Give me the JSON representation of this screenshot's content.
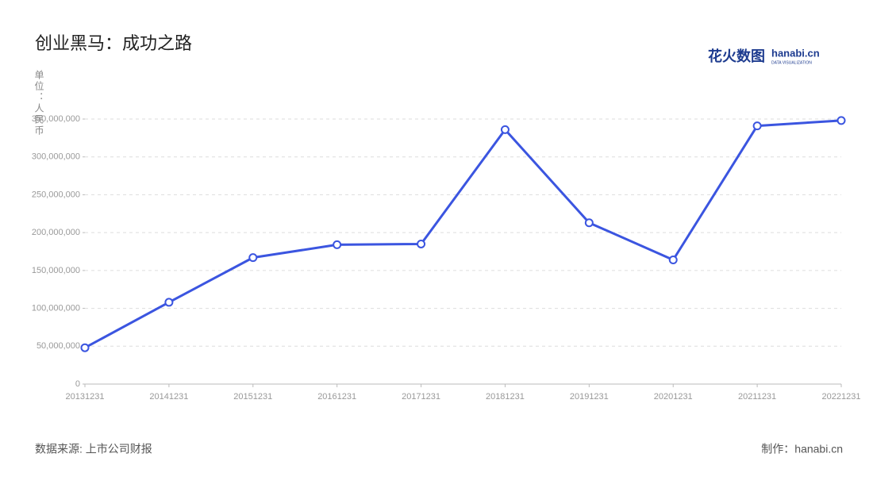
{
  "chart_data": {
    "type": "line",
    "title": "创业黑马：成功之路",
    "y_axis_label": "单位：人民币",
    "source": "数据来源: 上市公司财报",
    "credit": "制作：hanabi.cn",
    "logo": {
      "name": "花火数图",
      "domain": "hanabi.cn",
      "tagline": "DATA VISUALIZATION"
    },
    "categories": [
      "20131231",
      "20141231",
      "20151231",
      "20161231",
      "20171231",
      "20181231",
      "20191231",
      "20201231",
      "20211231",
      "20221231"
    ],
    "values": [
      48000000,
      108000000,
      167000000,
      184000000,
      185000000,
      336000000,
      213000000,
      164000000,
      341000000,
      348000000
    ],
    "color": "#3b55e0",
    "ylim": [
      0,
      350000000
    ],
    "yticks": [
      0,
      {
        "value": 50000000,
        "label": "50,000,000"
      },
      {
        "value": 100000000,
        "label": "100,000,000"
      },
      {
        "value": 150000000,
        "label": "150,000,000"
      },
      {
        "value": 200000000,
        "label": "200,000,000"
      },
      {
        "value": 250000000,
        "label": "250,000,000"
      },
      {
        "value": 300000000,
        "label": "300,000,000"
      },
      {
        "value": 350000000,
        "label": "350,000,000"
      }
    ],
    "grid": true
  }
}
